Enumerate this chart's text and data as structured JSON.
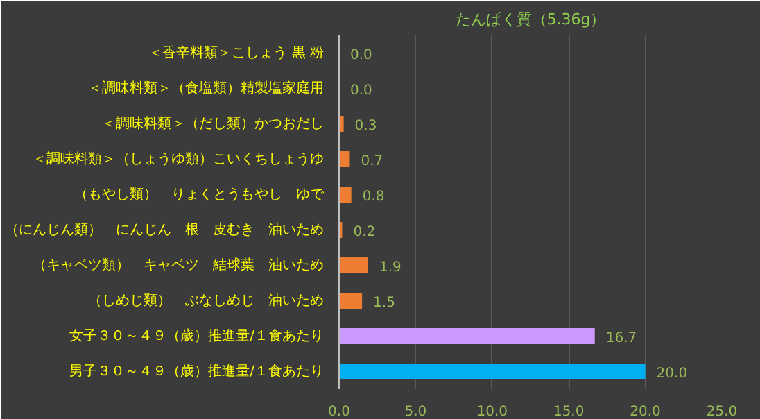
{
  "chart_data": {
    "type": "bar",
    "orientation": "horizontal",
    "title": "たんぱく質（5.36g）",
    "categories": [
      "＜香辛料類＞こしょう 黒 粉",
      "＜調味料類＞（食塩類）精製塩家庭用",
      "＜調味料類＞（だし類）かつおだし",
      "＜調味料類＞（しょうゆ類）こいくちしょうゆ",
      "（もやし類）　りょくとうもやし　ゆで",
      "（にんじん類）　にんじん　根　皮むき　油いため",
      "（キャベツ類）　キャベツ　結球葉　油いため",
      "（しめじ類）　ぶなしめじ　油いため",
      "女子３０～４９（歳）推進量/１食あたり",
      "男子３０～４９（歳）推進量/１食あたり"
    ],
    "values": [
      0.0,
      0.0,
      0.3,
      0.7,
      0.8,
      0.2,
      1.9,
      1.5,
      16.7,
      20.0
    ],
    "colors": [
      "#ed7d31",
      "#ed7d31",
      "#ed7d31",
      "#ed7d31",
      "#ed7d31",
      "#ed7d31",
      "#ed7d31",
      "#ed7d31",
      "#cc99ff",
      "#00b0f0"
    ],
    "xlim": [
      0,
      25
    ],
    "xticks": [
      {
        "value": 0,
        "label": "0.0"
      },
      {
        "value": 5,
        "label": "5.0"
      },
      {
        "value": 10,
        "label": "10.0"
      },
      {
        "value": 15,
        "label": "15.0"
      },
      {
        "value": 20,
        "label": "20.0"
      },
      {
        "value": 25,
        "label": "25.0"
      }
    ],
    "value_labels": [
      "0.0",
      "0.0",
      "0.3",
      "0.7",
      "0.8",
      "0.2",
      "1.9",
      "1.5",
      "16.7",
      "20.0"
    ],
    "grid": "x"
  }
}
